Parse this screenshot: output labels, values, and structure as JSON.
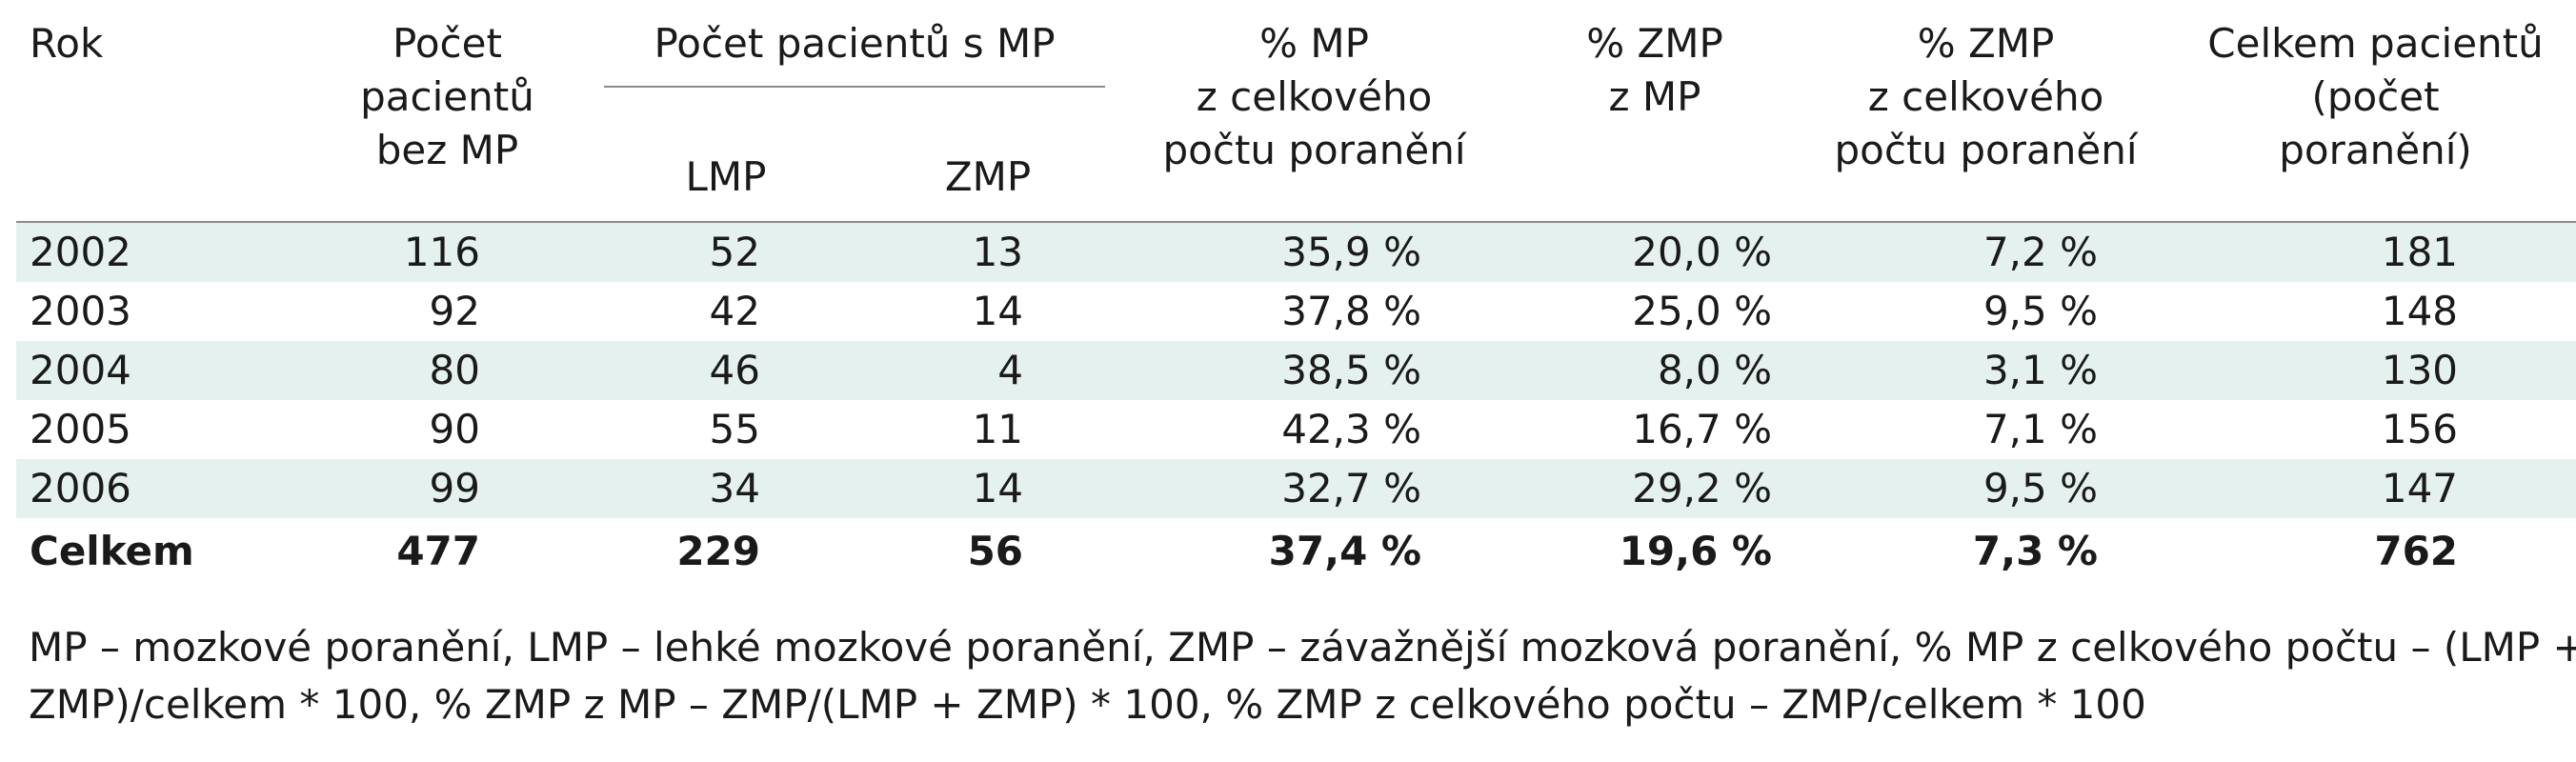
{
  "headers": {
    "rok": "Rok",
    "bez_mp": [
      "Počet",
      "pacientů",
      "bez MP"
    ],
    "group": "Počet pacientů s MP",
    "lmp": "LMP",
    "zmp": "ZMP",
    "pct_mp": [
      "% MP",
      "z celkového",
      "počtu poranění"
    ],
    "pct_zmp_mp": [
      "% ZMP",
      "z MP"
    ],
    "pct_zmp_total": [
      "% ZMP",
      "z celkového",
      "počtu poranění"
    ],
    "celkem": [
      "Celkem pacientů",
      "(počet",
      "poranění)"
    ]
  },
  "rows": [
    {
      "rok": "2002",
      "bez_mp": "116",
      "lmp": "52",
      "zmp": "13",
      "pct_mp": "35,9 %",
      "pct_zmp_mp": "20,0 %",
      "pct_zmp_total": "7,2 %",
      "celkem": "181"
    },
    {
      "rok": "2003",
      "bez_mp": "92",
      "lmp": "42",
      "zmp": "14",
      "pct_mp": "37,8 %",
      "pct_zmp_mp": "25,0 %",
      "pct_zmp_total": "9,5 %",
      "celkem": "148"
    },
    {
      "rok": "2004",
      "bez_mp": "80",
      "lmp": "46",
      "zmp": "4",
      "pct_mp": "38,5 %",
      "pct_zmp_mp": "8,0 %",
      "pct_zmp_total": "3,1 %",
      "celkem": "130"
    },
    {
      "rok": "2005",
      "bez_mp": "90",
      "lmp": "55",
      "zmp": "11",
      "pct_mp": "42,3 %",
      "pct_zmp_mp": "16,7 %",
      "pct_zmp_total": "7,1 %",
      "celkem": "156"
    },
    {
      "rok": "2006",
      "bez_mp": "99",
      "lmp": "34",
      "zmp": "14",
      "pct_mp": "32,7 %",
      "pct_zmp_mp": "29,2 %",
      "pct_zmp_total": "9,5 %",
      "celkem": "147"
    }
  ],
  "total": {
    "rok": "Celkem",
    "bez_mp": "477",
    "lmp": "229",
    "zmp": "56",
    "pct_mp": "37,4 %",
    "pct_zmp_mp": "19,6 %",
    "pct_zmp_total": "7,3 %",
    "celkem": "762"
  },
  "footnote": [
    "MP – mozkové poranění, LMP – lehké mozkové poranění, ZMP – závažnější mozková poranění, % MP z celkového počtu – (LMP +",
    "ZMP)/celkem * 100, % ZMP z MP – ZMP/(LMP + ZMP) * 100, % ZMP z celkového počtu – ZMP/celkem * 100"
  ],
  "colors": {
    "row_shade": "#e4f1ee",
    "rule": "#8c8c8c",
    "text": "#1a1a1a"
  }
}
